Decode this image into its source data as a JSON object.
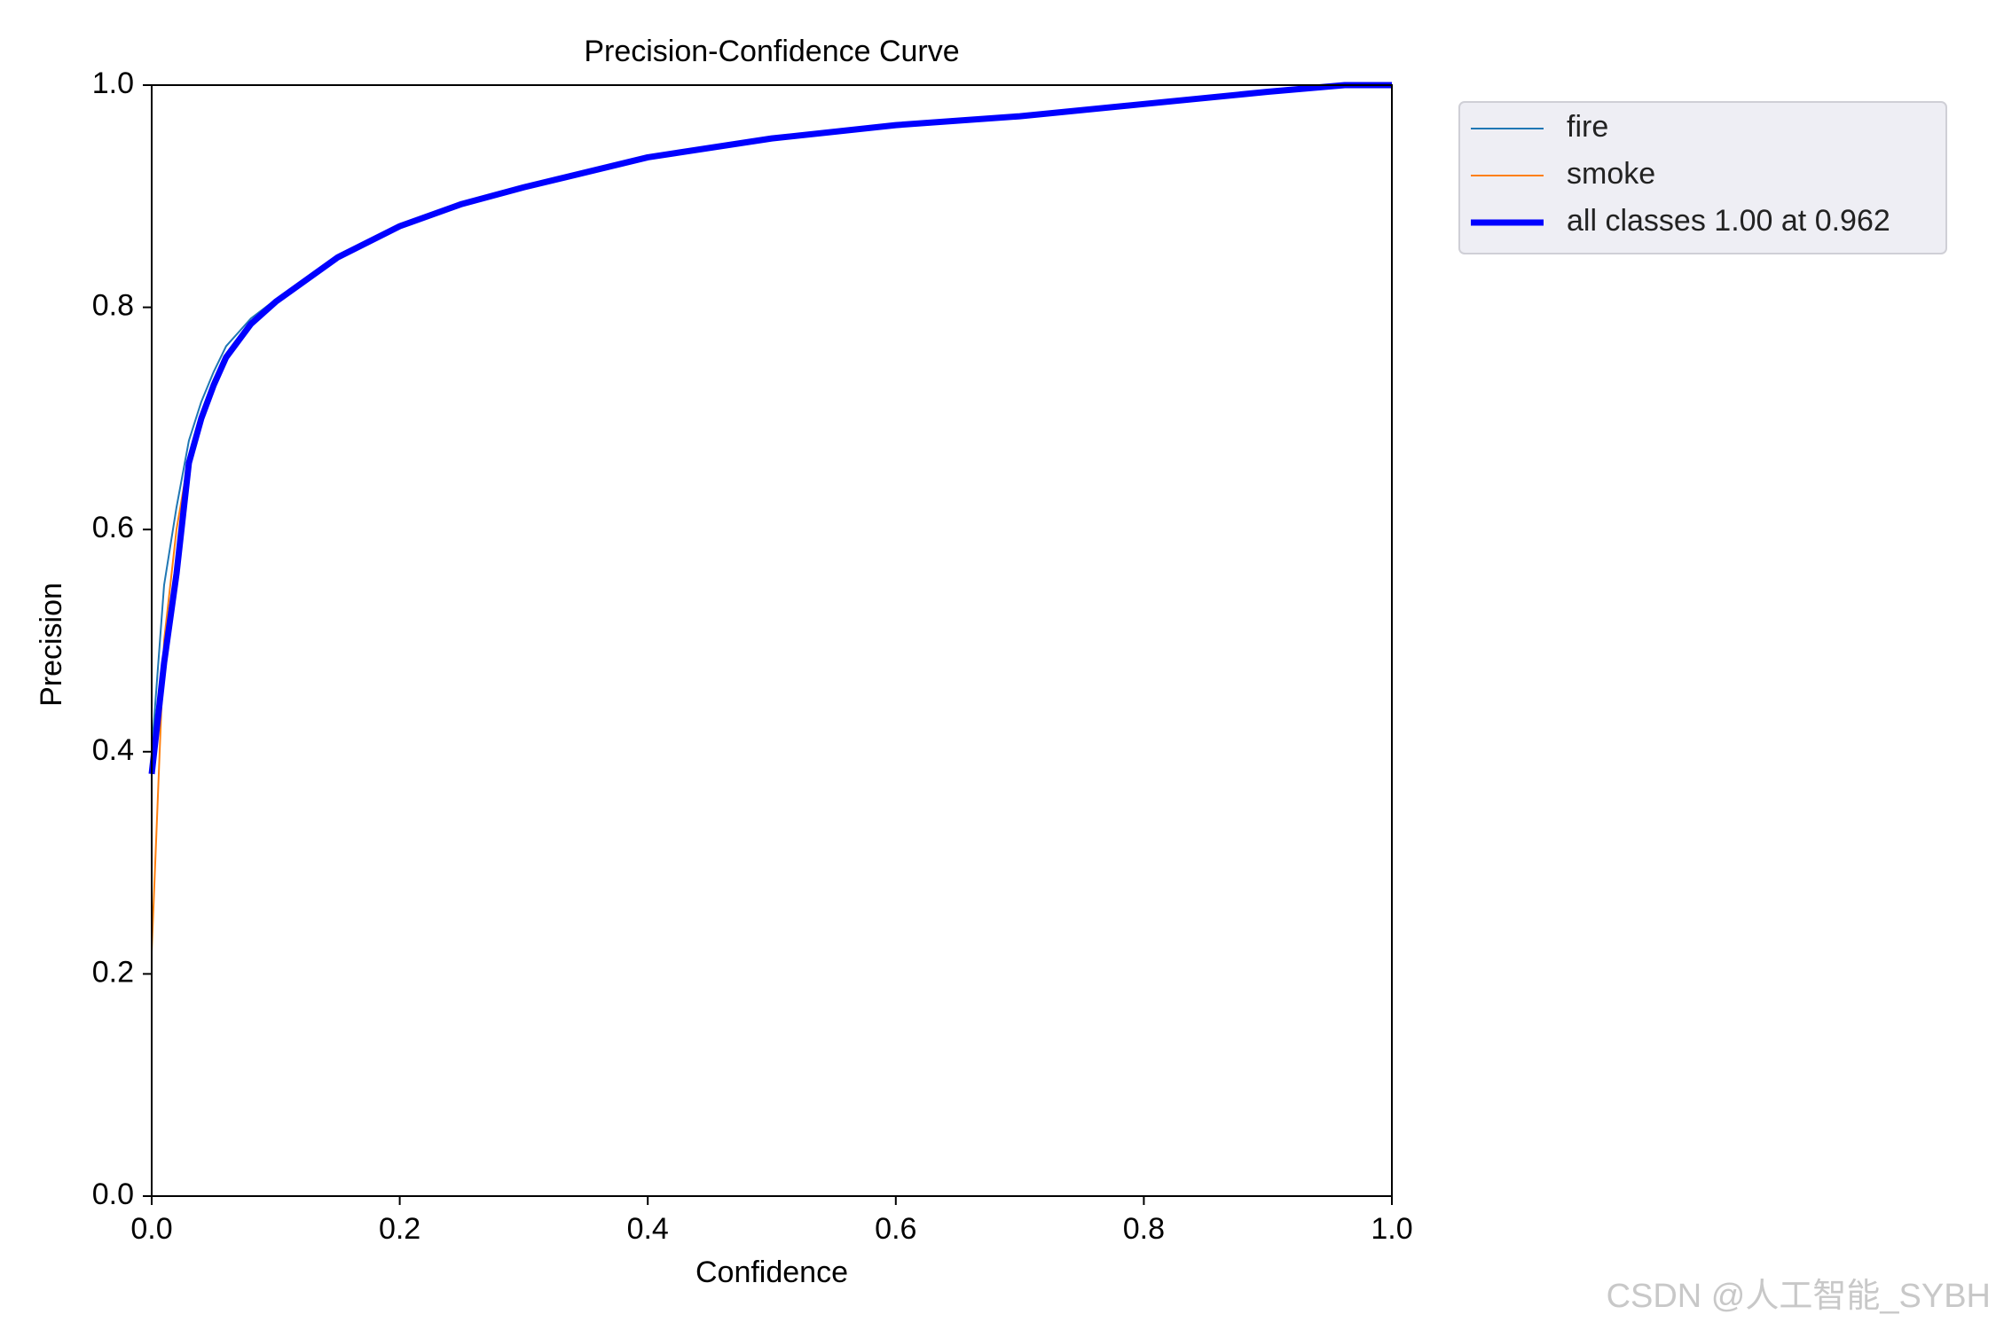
{
  "chart_data": {
    "type": "line",
    "title": "Precision-Confidence Curve",
    "x_label": "Confidence",
    "y_label": "Precision",
    "x": [
      0,
      0.01,
      0.02,
      0.03,
      0.04,
      0.05,
      0.06,
      0.08,
      0.1,
      0.15,
      0.2,
      0.25,
      0.3,
      0.4,
      0.5,
      0.6,
      0.7,
      0.8,
      0.9,
      0.962,
      1.0
    ],
    "series": [
      {
        "name": "fire",
        "color": "#1f77b4",
        "width": 2,
        "values": [
          0.4,
          0.55,
          0.62,
          0.68,
          0.715,
          0.742,
          0.765,
          0.79,
          0.807,
          0.846,
          0.872,
          0.893,
          0.908,
          0.936,
          0.952,
          0.964,
          0.972,
          0.983,
          0.994,
          1.0,
          1.0
        ]
      },
      {
        "name": "smoke",
        "color": "#ff7f0e",
        "width": 2,
        "values": [
          0.22,
          0.5,
          0.6,
          0.665,
          0.705,
          0.735,
          0.758,
          0.786,
          0.805,
          0.846,
          0.875,
          0.894,
          0.908,
          0.935,
          0.952,
          0.964,
          0.971,
          0.982,
          0.993,
          1.0,
          1.0
        ]
      },
      {
        "name": "all classes 1.00 at 0.962",
        "color": "#0000ff",
        "width": 7,
        "values": [
          0.38,
          0.48,
          0.56,
          0.66,
          0.7,
          0.73,
          0.755,
          0.785,
          0.805,
          0.845,
          0.873,
          0.893,
          0.908,
          0.935,
          0.952,
          0.964,
          0.972,
          0.983,
          0.994,
          1.0,
          1.0
        ]
      }
    ],
    "xlim": [
      0,
      1
    ],
    "ylim": [
      0,
      1
    ],
    "xticks": [
      {
        "value": 0,
        "label": "0.0"
      },
      0.2,
      0.4,
      0.6,
      0.8,
      {
        "value": 1,
        "label": "1.0"
      }
    ],
    "yticks": [
      {
        "value": 0,
        "label": "0.0"
      },
      0.2,
      0.4,
      0.6,
      0.8,
      {
        "value": 1,
        "label": "1.0"
      }
    ],
    "watermark": "CSDN @人工智能_SYBH"
  }
}
